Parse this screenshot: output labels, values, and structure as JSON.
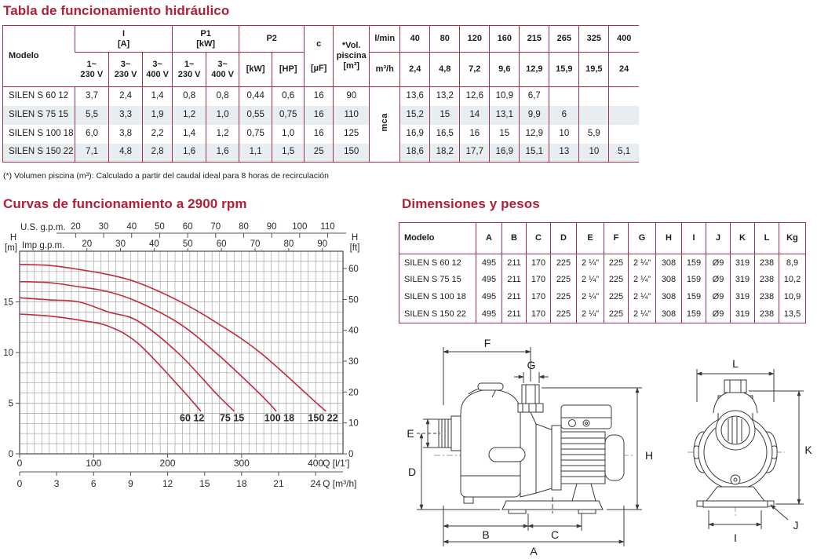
{
  "colors": {
    "accent": "#b01f37",
    "table_border": "#a03345",
    "row_alt": "#e8edf1",
    "grid": "#a5a5a5",
    "plot_border": "#555555",
    "curve": "#c12b3c",
    "drawing_stroke": "#3a3a3a"
  },
  "hydraulic": {
    "title": "Tabla de funcionamiento hidráulico",
    "header": {
      "modelo": "Modelo",
      "i_label": "I",
      "i_unit": "[A]",
      "i_cols": [
        {
          "l1": "1~",
          "l2": "230 V"
        },
        {
          "l1": "3~",
          "l2": "230 V"
        },
        {
          "l1": "3~",
          "l2": "400 V"
        }
      ],
      "p1_label": "P1",
      "p1_unit": "[kW]",
      "p1_cols": [
        {
          "l1": "1~",
          "l2": "230 V"
        },
        {
          "l1": "3~",
          "l2": "400 V"
        }
      ],
      "p2_label": "P2",
      "p2_cols": [
        "[kW]",
        "[HP]"
      ],
      "c_label": "c",
      "c_unit": "[µF]",
      "vol_l1": "*Vol.",
      "vol_l2": "piscina",
      "vol_l3": "[m³]",
      "flow_row1_label": "l/min",
      "flow_row2_label": "m³/h",
      "flow_lmin": [
        "40",
        "80",
        "120",
        "160",
        "215",
        "265",
        "325",
        "400"
      ],
      "flow_m3h": [
        "2,4",
        "4,8",
        "7,2",
        "9,6",
        "12,9",
        "15,9",
        "19,5",
        "24"
      ]
    },
    "unit_vertical": "mca",
    "rows": [
      {
        "model": "SILEN S 60 12",
        "values": [
          "3,7",
          "2,4",
          "1,4",
          "0,8",
          "0,8",
          "0,44",
          "0,6",
          "16",
          "90"
        ],
        "heads": [
          "13,6",
          "13,2",
          "12,6",
          "10,9",
          "6,7",
          "",
          "",
          ""
        ]
      },
      {
        "model": "SILEN S 75 15",
        "values": [
          "5,5",
          "3,3",
          "1,9",
          "1,2",
          "1,0",
          "0,55",
          "0,75",
          "16",
          "110"
        ],
        "heads": [
          "15,2",
          "15",
          "14",
          "13,1",
          "9,9",
          "6",
          "",
          ""
        ]
      },
      {
        "model": "SILEN S 100 18",
        "values": [
          "6,0",
          "3,8",
          "2,2",
          "1,4",
          "1,2",
          "0,75",
          "1,0",
          "16",
          "125"
        ],
        "heads": [
          "16,9",
          "16,5",
          "16",
          "15",
          "12,9",
          "10",
          "5,9",
          ""
        ]
      },
      {
        "model": "SILEN S 150 22",
        "values": [
          "7,1",
          "4,8",
          "2,8",
          "1,6",
          "1,6",
          "1,1",
          "1,5",
          "25",
          "150"
        ],
        "heads": [
          "18,6",
          "18,2",
          "17,7",
          "16,9",
          "15,1",
          "13",
          "10",
          "5,1"
        ]
      }
    ],
    "footnote": "(*) Volumen piscina (m³): Calculado a partir del caudal ideal para 8 horas de recirculación"
  },
  "chart_title": "Curvas de funcionamiento a 2900 rpm",
  "chart_data": {
    "type": "line",
    "title": "Curvas de funcionamiento a 2900 rpm",
    "grid": true,
    "x_axes": {
      "bottom_primary": {
        "label": "Q [l/1']",
        "ticks": [
          0,
          100,
          200,
          300,
          400
        ],
        "range": [
          0,
          437
        ],
        "minor_step": 10
      },
      "bottom_secondary": {
        "label": "Q [m³/h]",
        "ticks": [
          0,
          3,
          6,
          9,
          12,
          15,
          18,
          21,
          24
        ],
        "lmin_per_unit": 16.667
      },
      "top_us_gpm": {
        "label": "U.S. g.p.m.",
        "ticks": [
          20,
          30,
          40,
          50,
          60,
          70,
          80,
          90,
          100,
          110
        ],
        "lmin_per_unit": 3.785
      },
      "top_imp_gpm": {
        "label": "Imp g.p.m.",
        "ticks": [
          20,
          30,
          40,
          50,
          60,
          70,
          80,
          90
        ],
        "lmin_per_unit": 4.546
      }
    },
    "y_axis": {
      "label_left_1": "H",
      "label_left_2": "[m]",
      "label_right_1": "H",
      "label_right_2": "[ft]",
      "ticks_m": [
        0,
        5,
        10,
        15
      ],
      "range_m": [
        0,
        20
      ],
      "minor_step_m": 1,
      "ticks_ft": [
        0,
        10,
        20,
        30,
        40,
        50,
        60
      ],
      "ft_per_m": 3.2808
    },
    "series": [
      {
        "name": "60 12",
        "label_pos": [
          233,
          3.2
        ],
        "points": [
          [
            0,
            13.8
          ],
          [
            40,
            13.6
          ],
          [
            80,
            13.2
          ],
          [
            120,
            12.6
          ],
          [
            160,
            10.9
          ],
          [
            215,
            6.7
          ],
          [
            245,
            4.2
          ]
        ]
      },
      {
        "name": "75 15",
        "label_pos": [
          287,
          3.2
        ],
        "points": [
          [
            0,
            15.4
          ],
          [
            40,
            15.2
          ],
          [
            80,
            15.0
          ],
          [
            120,
            14.0
          ],
          [
            160,
            13.1
          ],
          [
            215,
            9.9
          ],
          [
            265,
            6.0
          ],
          [
            290,
            4.2
          ]
        ]
      },
      {
        "name": "100 18",
        "label_pos": [
          351,
          3.2
        ],
        "points": [
          [
            0,
            17.0
          ],
          [
            40,
            16.9
          ],
          [
            80,
            16.5
          ],
          [
            120,
            16.0
          ],
          [
            160,
            15.0
          ],
          [
            215,
            12.9
          ],
          [
            265,
            10.0
          ],
          [
            325,
            5.9
          ],
          [
            347,
            4.2
          ]
        ]
      },
      {
        "name": "150 22",
        "label_pos": [
          410,
          3.2
        ],
        "points": [
          [
            0,
            18.7
          ],
          [
            40,
            18.6
          ],
          [
            80,
            18.2
          ],
          [
            120,
            17.7
          ],
          [
            160,
            16.9
          ],
          [
            215,
            15.1
          ],
          [
            265,
            13.0
          ],
          [
            325,
            10.0
          ],
          [
            400,
            5.1
          ],
          [
            414,
            4.2
          ]
        ]
      }
    ]
  },
  "dimensions": {
    "title": "Dimensiones y pesos",
    "headers": [
      "Modelo",
      "A",
      "B",
      "C",
      "D",
      "E",
      "F",
      "G",
      "H",
      "I",
      "J",
      "K",
      "L",
      "Kg"
    ],
    "rows": [
      [
        "SILEN S 60 12",
        "495",
        "211",
        "170",
        "225",
        "2 ¼”",
        "225",
        "2 ¼”",
        "308",
        "159",
        "Ø9",
        "319",
        "238",
        "8,9"
      ],
      [
        "SILEN S 75 15",
        "495",
        "211",
        "170",
        "225",
        "2 ¼”",
        "225",
        "2 ¼”",
        "308",
        "159",
        "Ø9",
        "319",
        "238",
        "10,2"
      ],
      [
        "SILEN S 100 18",
        "495",
        "211",
        "170",
        "225",
        "2 ¼”",
        "225",
        "2 ¼”",
        "308",
        "159",
        "Ø9",
        "319",
        "238",
        "10,9"
      ],
      [
        "SILEN S 150 22",
        "495",
        "211",
        "170",
        "225",
        "2 ¼”",
        "225",
        "2 ¼”",
        "308",
        "159",
        "Ø9",
        "319",
        "238",
        "13,5"
      ]
    ]
  },
  "drawings": {
    "side_labels": {
      "A": "A",
      "B": "B",
      "C": "C",
      "D": "D",
      "E": "E",
      "F": "F",
      "G": "G",
      "H": "H"
    },
    "front_labels": {
      "I": "I",
      "J": "J",
      "K": "K",
      "L": "L"
    }
  }
}
